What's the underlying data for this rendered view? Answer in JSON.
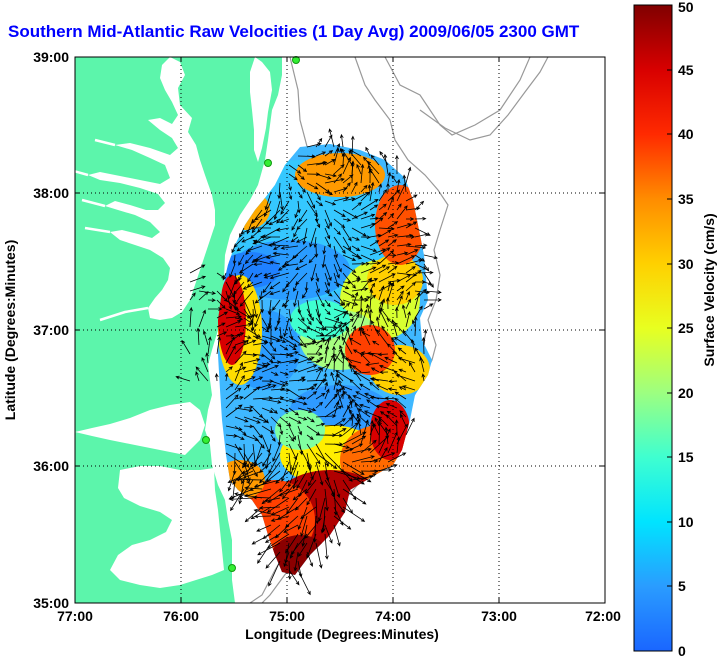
{
  "title": "Southern Mid-Atlantic Raw Velocities (1 Day Avg) 2009/06/05 2300 GMT",
  "x_axis": {
    "label": "Longitude (Degrees:Minutes)",
    "ticks": [
      "77:00",
      "76:00",
      "75:00",
      "74:00",
      "73:00",
      "72:00"
    ],
    "values": [
      -77,
      -76,
      -75,
      -74,
      -73,
      -72
    ]
  },
  "y_axis": {
    "label": "Latitude (Degrees:Minutes)",
    "ticks": [
      "35:00",
      "36:00",
      "37:00",
      "38:00",
      "39:00"
    ],
    "values": [
      35,
      36,
      37,
      38,
      39
    ]
  },
  "colorbar": {
    "label": "Surface Velocity (cm/s)",
    "ticks": [
      "0",
      "5",
      "10",
      "15",
      "20",
      "25",
      "30",
      "35",
      "40",
      "45",
      "50"
    ],
    "min": 0,
    "max": 50
  },
  "colors": {
    "land": "#5cf5ab",
    "water": "#ffffff",
    "title": "#0000ff",
    "station": "#33ee33"
  },
  "grid": "dotted",
  "legend": "colorbar-right"
}
